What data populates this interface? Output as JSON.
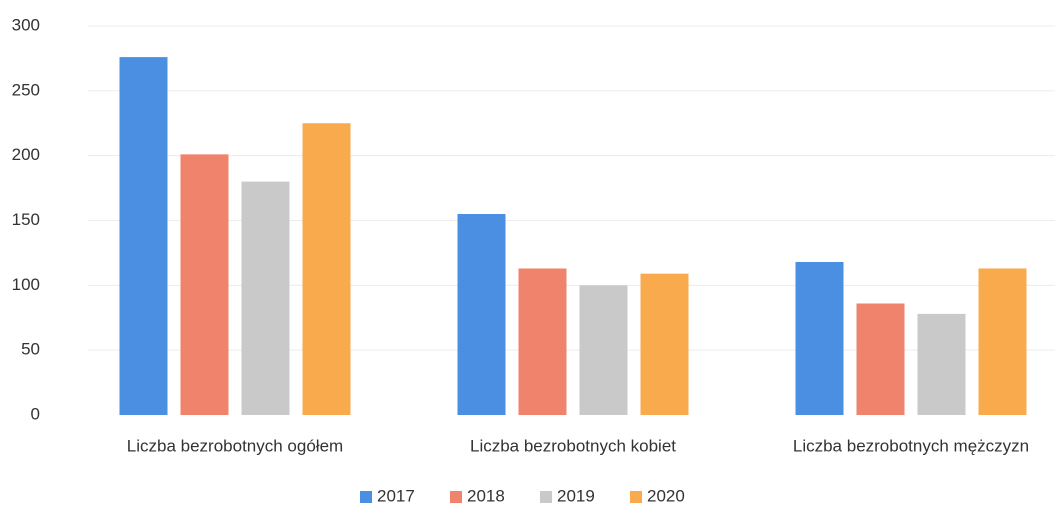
{
  "chart_data": {
    "type": "bar",
    "categories": [
      "Liczba bezrobotnych ogółem",
      "Liczba bezrobotnych kobiet",
      "Liczba bezrobotnych mężczyzn"
    ],
    "series": [
      {
        "name": "2017",
        "color": "#4a8fe2",
        "values": [
          276,
          155,
          118
        ]
      },
      {
        "name": "2018",
        "color": "#f0836b",
        "values": [
          201,
          113,
          86
        ]
      },
      {
        "name": "2019",
        "color": "#c9c9c9",
        "values": [
          180,
          100,
          78
        ]
      },
      {
        "name": "2020",
        "color": "#f8aa4c",
        "values": [
          225,
          109,
          113
        ]
      }
    ],
    "ylim": [
      0,
      300
    ],
    "yticks": [
      0,
      50,
      100,
      150,
      200,
      250,
      300
    ],
    "grid": true,
    "legend": "bottom"
  }
}
